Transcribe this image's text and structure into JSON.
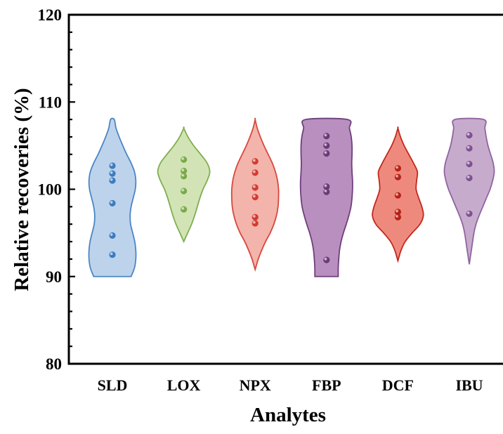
{
  "chart_data": {
    "type": "violin",
    "xlabel": "Analytes",
    "ylabel": "Relative recoveries (%)",
    "ylim": [
      80,
      120
    ],
    "yticks": [
      80,
      90,
      100,
      110,
      120
    ],
    "y_tick_labels": [
      "80",
      "90",
      "100",
      "110",
      "120"
    ],
    "categories": [
      "SLD",
      "LOX",
      "NPX",
      "FBP",
      "DCF",
      "IBU"
    ],
    "grid": false,
    "legend": "none",
    "series": [
      {
        "category": "SLD",
        "fill": "#bdd3ec",
        "stroke": "#4a86c5",
        "dot": "#3a7bc0",
        "range": [
          90,
          108
        ],
        "points": [
          92.5,
          94.7,
          98.4,
          101.0,
          101.8,
          102.7
        ],
        "profile": [
          [
            90,
            0.72
          ],
          [
            91,
            0.85
          ],
          [
            92,
            0.9
          ],
          [
            93,
            0.9
          ],
          [
            94,
            0.86
          ],
          [
            95,
            0.78
          ],
          [
            96,
            0.7
          ],
          [
            97,
            0.68
          ],
          [
            98,
            0.72
          ],
          [
            99,
            0.8
          ],
          [
            100,
            0.88
          ],
          [
            101,
            0.9
          ],
          [
            102,
            0.85
          ],
          [
            103,
            0.72
          ],
          [
            104,
            0.55
          ],
          [
            105,
            0.4
          ],
          [
            106,
            0.26
          ],
          [
            107,
            0.14
          ],
          [
            108,
            0.07
          ]
        ]
      },
      {
        "category": "LOX",
        "fill": "#d2e4b6",
        "stroke": "#7fae4e",
        "dot": "#7aa947",
        "range": [
          94,
          107
        ],
        "points": [
          97.7,
          99.8,
          101.5,
          102.1,
          103.4
        ],
        "profile": [
          [
            94,
            0
          ],
          [
            95,
            0.15
          ],
          [
            96,
            0.3
          ],
          [
            97,
            0.42
          ],
          [
            98,
            0.52
          ],
          [
            99,
            0.62
          ],
          [
            100,
            0.74
          ],
          [
            101,
            0.9
          ],
          [
            102,
            1.0
          ],
          [
            103,
            0.9
          ],
          [
            104,
            0.65
          ],
          [
            105,
            0.38
          ],
          [
            106,
            0.16
          ],
          [
            107,
            0
          ]
        ]
      },
      {
        "category": "NPX",
        "fill": "#f2b4ab",
        "stroke": "#d9473e",
        "dot": "#d33a30",
        "range": [
          90.8,
          108
        ],
        "points": [
          96.1,
          96.8,
          99.1,
          100.2,
          101.9,
          103.2
        ],
        "profile": [
          [
            90.8,
            0
          ],
          [
            92,
            0.12
          ],
          [
            93,
            0.25
          ],
          [
            94,
            0.4
          ],
          [
            95,
            0.58
          ],
          [
            96,
            0.72
          ],
          [
            97,
            0.82
          ],
          [
            98,
            0.88
          ],
          [
            99,
            0.9
          ],
          [
            100,
            0.9
          ],
          [
            101,
            0.86
          ],
          [
            102,
            0.78
          ],
          [
            103,
            0.66
          ],
          [
            104,
            0.5
          ],
          [
            105,
            0.34
          ],
          [
            106,
            0.2
          ],
          [
            107,
            0.08
          ],
          [
            108,
            0
          ]
        ]
      },
      {
        "category": "FBP",
        "fill": "#b98fbf",
        "stroke": "#6e3f7a",
        "dot": "#6a3a75",
        "range": [
          90,
          108
        ],
        "points": [
          91.9,
          99.7,
          100.3,
          104.1,
          105.0,
          106.1
        ],
        "profile": [
          [
            90,
            0.45
          ],
          [
            91,
            0.45
          ],
          [
            92,
            0.47
          ],
          [
            93,
            0.5
          ],
          [
            94,
            0.56
          ],
          [
            95,
            0.65
          ],
          [
            96,
            0.76
          ],
          [
            97,
            0.86
          ],
          [
            98,
            0.94
          ],
          [
            99,
            0.98
          ],
          [
            100,
            1.0
          ],
          [
            101,
            1.0
          ],
          [
            102,
            0.98
          ],
          [
            103,
            0.97
          ],
          [
            104,
            0.98
          ],
          [
            105,
            0.98
          ],
          [
            106,
            0.95
          ],
          [
            107,
            0.88
          ],
          [
            108,
            0.8
          ]
        ]
      },
      {
        "category": "DCF",
        "fill": "#ee8a7d",
        "stroke": "#c2281c",
        "dot": "#b82116",
        "range": [
          91.8,
          107
        ],
        "points": [
          96.8,
          97.4,
          99.3,
          101.4,
          102.4
        ],
        "profile": [
          [
            91.8,
            0
          ],
          [
            93,
            0.12
          ],
          [
            94,
            0.28
          ],
          [
            95,
            0.55
          ],
          [
            96,
            0.85
          ],
          [
            97,
            0.98
          ],
          [
            98,
            0.92
          ],
          [
            99,
            0.8
          ],
          [
            100,
            0.7
          ],
          [
            101,
            0.72
          ],
          [
            102,
            0.75
          ],
          [
            103,
            0.6
          ],
          [
            104,
            0.42
          ],
          [
            105,
            0.24
          ],
          [
            106,
            0.1
          ],
          [
            107,
            0
          ]
        ]
      },
      {
        "category": "IBU",
        "fill": "#c7abcd",
        "stroke": "#8f64a0",
        "dot": "#7e5192",
        "range": [
          91.4,
          108
        ],
        "points": [
          97.2,
          101.3,
          102.9,
          104.7,
          106.2
        ],
        "profile": [
          [
            91.4,
            0
          ],
          [
            93,
            0.08
          ],
          [
            95,
            0.18
          ],
          [
            96,
            0.26
          ],
          [
            97,
            0.38
          ],
          [
            98,
            0.52
          ],
          [
            99,
            0.66
          ],
          [
            100,
            0.8
          ],
          [
            101,
            0.9
          ],
          [
            102,
            0.96
          ],
          [
            103,
            0.92
          ],
          [
            104,
            0.82
          ],
          [
            105,
            0.72
          ],
          [
            106,
            0.65
          ],
          [
            107,
            0.6
          ],
          [
            108,
            0.55
          ]
        ]
      }
    ]
  }
}
